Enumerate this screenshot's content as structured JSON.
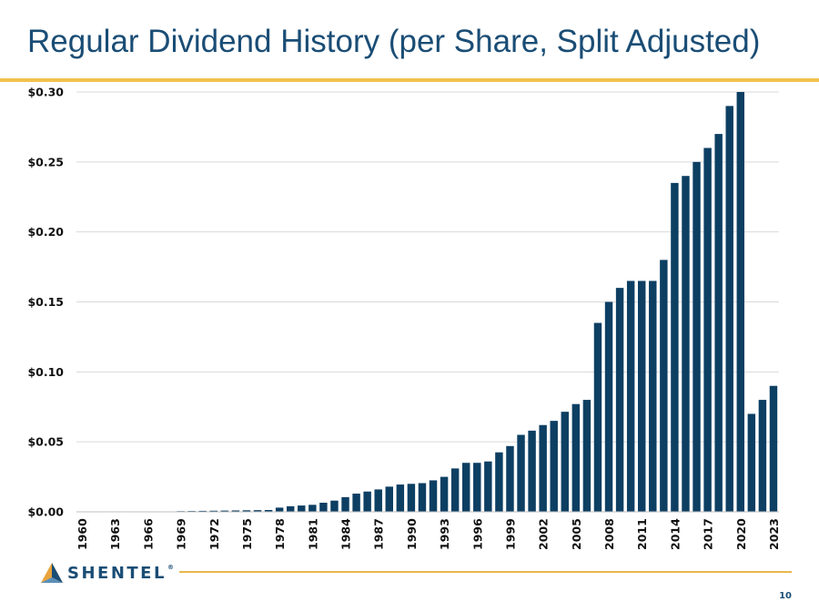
{
  "slide": {
    "title": "Regular Dividend History (per Share, Split Adjusted)",
    "page_number": "10"
  },
  "logo": {
    "text": "SHENTEL",
    "registered_mark": "®",
    "icon": "shentel-triangle-icon"
  },
  "colors": {
    "bar": "#0d3f63",
    "title": "#1a4d75",
    "accent": "#f2c14e",
    "grid": "#d9d9d9"
  },
  "chart_data": {
    "type": "bar",
    "title": "",
    "xlabel": "",
    "ylabel": "",
    "ylim": [
      0,
      0.3
    ],
    "yticks": [
      0.0,
      0.05,
      0.1,
      0.15,
      0.2,
      0.25,
      0.3
    ],
    "ytick_labels": [
      "$0.00",
      "$0.05",
      "$0.10",
      "$0.15",
      "$0.20",
      "$0.25",
      "$0.30"
    ],
    "xtick_labels": [
      "1960",
      "1963",
      "1966",
      "1969",
      "1972",
      "1975",
      "1978",
      "1981",
      "1984",
      "1987",
      "1990",
      "1993",
      "1996",
      "1999",
      "2002",
      "2005",
      "2008",
      "2011",
      "2014",
      "2017",
      "2020",
      "2023"
    ],
    "grid": "horizontal",
    "legend": "none",
    "categories": [
      "1960",
      "1961",
      "1962",
      "1963",
      "1964",
      "1965",
      "1966",
      "1967",
      "1968",
      "1969",
      "1970",
      "1971",
      "1972",
      "1973",
      "1974",
      "1975",
      "1976",
      "1977",
      "1978",
      "1979",
      "1980",
      "1981",
      "1982",
      "1983",
      "1984",
      "1985",
      "1986",
      "1987",
      "1988",
      "1989",
      "1990",
      "1991",
      "1992",
      "1993",
      "1994",
      "1995",
      "1996",
      "1997",
      "1998",
      "1999",
      "2000",
      "2001",
      "2002",
      "2003",
      "2004",
      "2005",
      "2006",
      "2007",
      "2008",
      "2009",
      "2010",
      "2011",
      "2012",
      "2013",
      "2014",
      "2015",
      "2016",
      "2017",
      "2018",
      "2019",
      "2020",
      "2021",
      "2022",
      "2023"
    ],
    "values": [
      0,
      0,
      0,
      0,
      0,
      0,
      0,
      0,
      0,
      0.0005,
      0.0006,
      0.0007,
      0.0008,
      0.0009,
      0.001,
      0.0011,
      0.0012,
      0.0013,
      0.003,
      0.004,
      0.0045,
      0.005,
      0.0065,
      0.008,
      0.0105,
      0.013,
      0.0145,
      0.016,
      0.018,
      0.0195,
      0.02,
      0.0205,
      0.0225,
      0.025,
      0.031,
      0.035,
      0.035,
      0.036,
      0.0425,
      0.047,
      0.055,
      0.058,
      0.062,
      0.065,
      0.0715,
      0.077,
      0.08,
      0.135,
      0.15,
      0.16,
      0.165,
      0.165,
      0.165,
      0.18,
      0.235,
      0.24,
      0.25,
      0.26,
      0.27,
      0.29,
      0.3,
      0.07,
      0.08,
      0.09
    ]
  }
}
